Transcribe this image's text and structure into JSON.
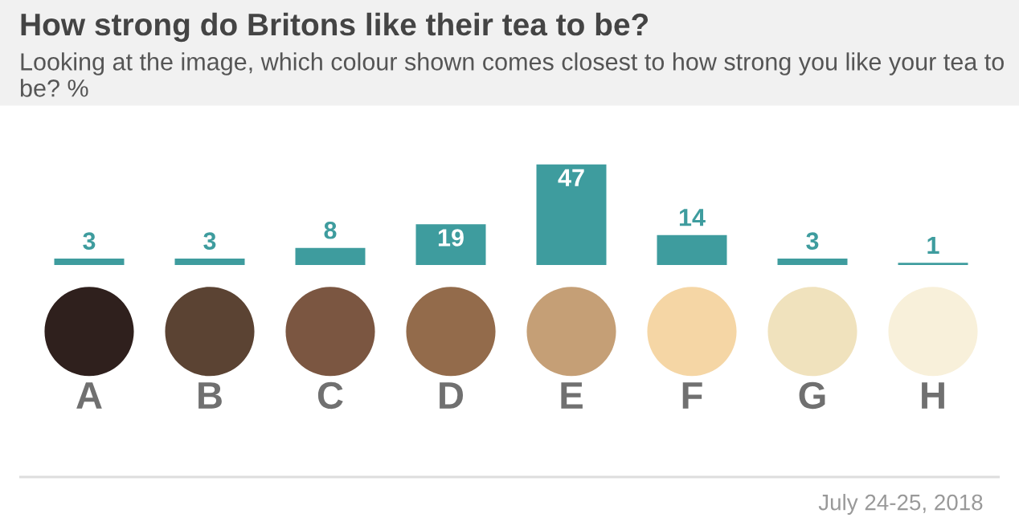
{
  "chart_data": {
    "type": "bar",
    "title": "How strong do Britons like their tea to be?",
    "subtitle": "Looking at the image, which colour shown comes closest to how strong you like your tea to be? %",
    "categories": [
      "A",
      "B",
      "C",
      "D",
      "E",
      "F",
      "G",
      "H"
    ],
    "values": [
      3,
      3,
      8,
      19,
      47,
      14,
      3,
      1
    ],
    "color": "#3e9c9e",
    "data_labels": true,
    "annotations": [
      "July 24-25, 2018"
    ]
  }
}
